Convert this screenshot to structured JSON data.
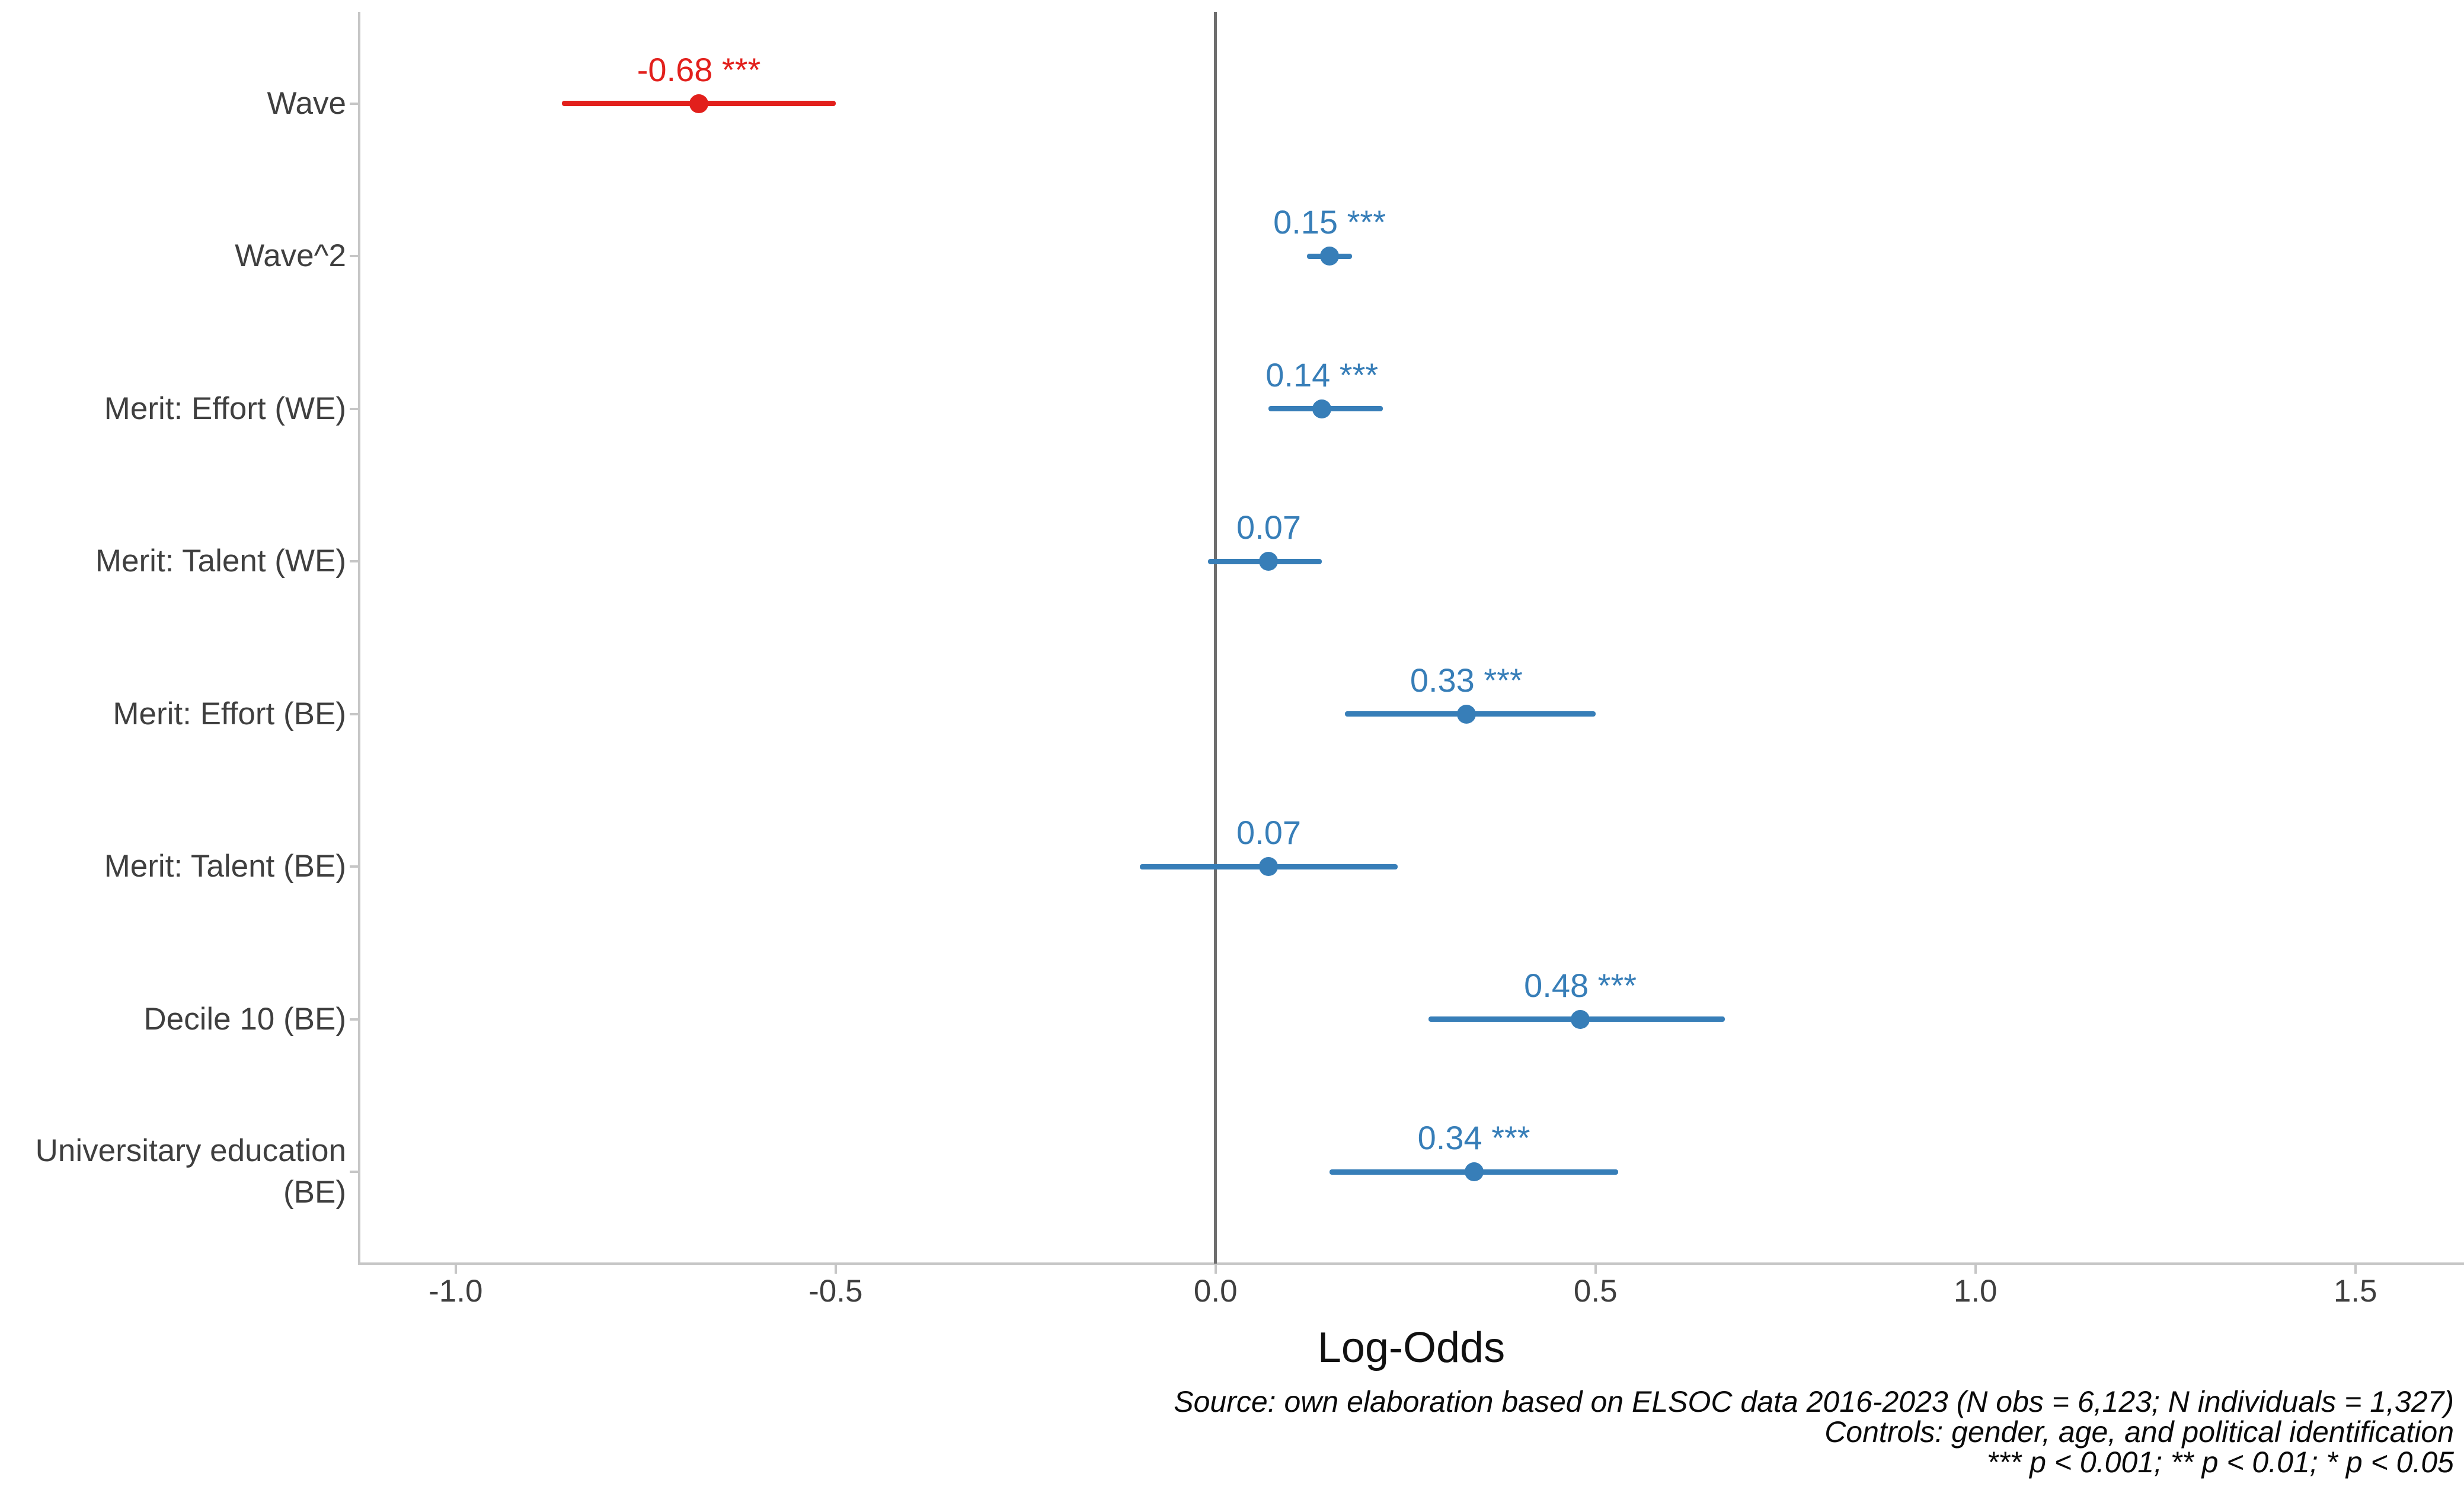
{
  "chart_data": {
    "type": "forest",
    "title": "",
    "xlabel": "Log-Odds",
    "xlim": [
      -1.127,
      1.643
    ],
    "x_ticks": [
      -1.0,
      -0.5,
      0.0,
      0.5,
      1.0,
      1.5
    ],
    "x_tick_labels": [
      "-1.0",
      "-0.5",
      "0.0",
      "0.5",
      "1.0",
      "1.5"
    ],
    "zero_reference": 0,
    "grid": "off",
    "legend": "none",
    "colors": {
      "negative": "#e2201c",
      "positive": "#377eb8"
    },
    "rows": [
      {
        "label": "Wave",
        "estimate": -0.68,
        "ci_low": -0.86,
        "ci_high": -0.5,
        "value_label": "-0.68 ***",
        "significance": "***",
        "color_key": "negative"
      },
      {
        "label": "Wave^2",
        "estimate": 0.15,
        "ci_low": 0.12,
        "ci_high": 0.18,
        "value_label": "0.15 ***",
        "significance": "***",
        "color_key": "positive"
      },
      {
        "label": "Merit: Effort (WE)",
        "estimate": 0.14,
        "ci_low": 0.07,
        "ci_high": 0.22,
        "value_label": "0.14 ***",
        "significance": "***",
        "color_key": "positive"
      },
      {
        "label": "Merit: Talent (WE)",
        "estimate": 0.07,
        "ci_low": -0.01,
        "ci_high": 0.14,
        "value_label": "0.07",
        "significance": "",
        "color_key": "positive"
      },
      {
        "label": "Merit: Effort (BE)",
        "estimate": 0.33,
        "ci_low": 0.17,
        "ci_high": 0.5,
        "value_label": "0.33 ***",
        "significance": "***",
        "color_key": "positive"
      },
      {
        "label": "Merit: Talent (BE)",
        "estimate": 0.07,
        "ci_low": -0.1,
        "ci_high": 0.24,
        "value_label": "0.07",
        "significance": "",
        "color_key": "positive"
      },
      {
        "label": "Decile 10 (BE)",
        "estimate": 0.48,
        "ci_low": 0.28,
        "ci_high": 0.67,
        "value_label": "0.48 ***",
        "significance": "***",
        "color_key": "positive"
      },
      {
        "label": "Universitary education\n(BE)",
        "estimate": 0.34,
        "ci_low": 0.15,
        "ci_high": 0.53,
        "value_label": "0.34 ***",
        "significance": "***",
        "color_key": "positive"
      }
    ],
    "notes": [
      "Source: own elaboration based on ELSOC data 2016-2023 (N obs = 6,123; N individuals = 1,327)",
      "Controls: gender, age, and political identification",
      "*** p < 0.001; ** p < 0.01; * p < 0.05"
    ]
  }
}
